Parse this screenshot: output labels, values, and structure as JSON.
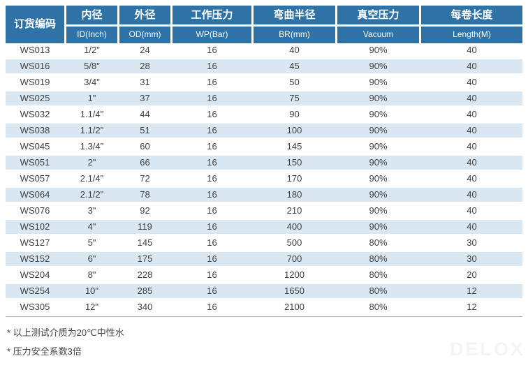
{
  "colors": {
    "header_bg": "#2e72a6",
    "stripe_bg": "#d9e7f2",
    "text": "#3f3f3f"
  },
  "table": {
    "columns": [
      {
        "zh": "订货编码",
        "en": ""
      },
      {
        "zh": "内径",
        "en": "ID(Inch)"
      },
      {
        "zh": "外径",
        "en": "OD(mm)"
      },
      {
        "zh": "工作压力",
        "en": "WP(Bar)"
      },
      {
        "zh": "弯曲半径",
        "en": "BR(mm)"
      },
      {
        "zh": "真空压力",
        "en": "Vacuum"
      },
      {
        "zh": "每卷长度",
        "en": "Length(M)"
      }
    ],
    "rows": [
      [
        "WS013",
        "1/2\"",
        "24",
        "16",
        "40",
        "90%",
        "40"
      ],
      [
        "WS016",
        "5/8\"",
        "28",
        "16",
        "45",
        "90%",
        "40"
      ],
      [
        "WS019",
        "3/4\"",
        "31",
        "16",
        "50",
        "90%",
        "40"
      ],
      [
        "WS025",
        "1\"",
        "37",
        "16",
        "75",
        "90%",
        "40"
      ],
      [
        "WS032",
        "1.1/4\"",
        "44",
        "16",
        "90",
        "90%",
        "40"
      ],
      [
        "WS038",
        "1.1/2\"",
        "51",
        "16",
        "100",
        "90%",
        "40"
      ],
      [
        "WS045",
        "1.3/4\"",
        "60",
        "16",
        "145",
        "90%",
        "40"
      ],
      [
        "WS051",
        "2\"",
        "66",
        "16",
        "150",
        "90%",
        "40"
      ],
      [
        "WS057",
        "2.1/4\"",
        "72",
        "16",
        "170",
        "90%",
        "40"
      ],
      [
        "WS064",
        "2.1/2\"",
        "78",
        "16",
        "180",
        "90%",
        "40"
      ],
      [
        "WS076",
        "3\"",
        "92",
        "16",
        "210",
        "90%",
        "40"
      ],
      [
        "WS102",
        "4\"",
        "119",
        "16",
        "400",
        "90%",
        "40"
      ],
      [
        "WS127",
        "5\"",
        "145",
        "16",
        "500",
        "80%",
        "30"
      ],
      [
        "WS152",
        "6\"",
        "175",
        "16",
        "700",
        "80%",
        "30"
      ],
      [
        "WS204",
        "8\"",
        "228",
        "16",
        "1200",
        "80%",
        "20"
      ],
      [
        "WS254",
        "10\"",
        "285",
        "16",
        "1650",
        "80%",
        "12"
      ],
      [
        "WS305",
        "12\"",
        "340",
        "16",
        "2100",
        "80%",
        "12"
      ]
    ]
  },
  "footnotes": [
    "* 以上测试介质为20℃中性水",
    "* 压力安全系数3倍"
  ],
  "watermark": "DELOX"
}
